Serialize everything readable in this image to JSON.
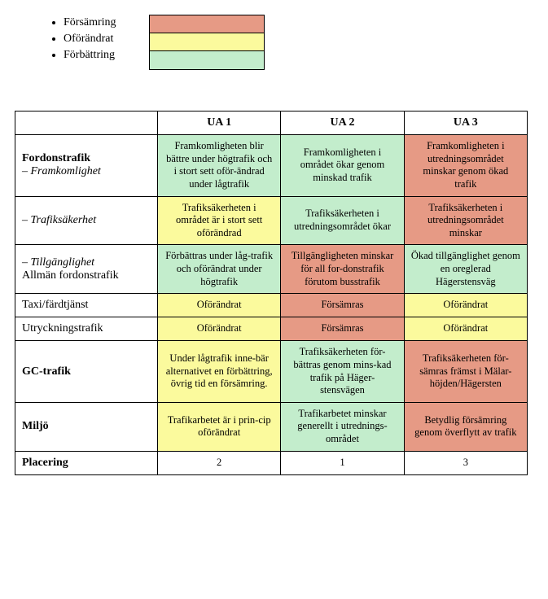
{
  "colors": {
    "worse": "#e69a85",
    "same": "#fbfa9d",
    "better": "#c3edcc",
    "border": "#000000",
    "bg": "#ffffff"
  },
  "legend": {
    "items": [
      {
        "label": "Försämring",
        "color_key": "worse"
      },
      {
        "label": "Oförändrat",
        "color_key": "same"
      },
      {
        "label": "Förbättring",
        "color_key": "better"
      }
    ]
  },
  "table": {
    "columns": [
      {
        "key": "ua1",
        "label": "UA 1"
      },
      {
        "key": "ua2",
        "label": "UA 2"
      },
      {
        "key": "ua3",
        "label": "UA 3"
      }
    ],
    "rows": [
      {
        "row_kind": "solid",
        "label_parts": [
          {
            "text": "Fordonstrafik",
            "style": "title"
          },
          {
            "text": "– Framkomlighet",
            "style": "sub"
          }
        ],
        "cells": {
          "ua1": {
            "text": "Framkomligheten blir bättre under högtrafik och i stort sett oför-ändrad under lågtrafik",
            "color_key": "better"
          },
          "ua2": {
            "text": "Framkomligheten i området ökar genom minskad trafik",
            "color_key": "better"
          },
          "ua3": {
            "text": "Framkomligheten i utredningsområdet minskar genom ökad trafik",
            "color_key": "worse"
          }
        }
      },
      {
        "row_kind": "dashed",
        "label_parts": [
          {
            "text": "– Trafiksäkerhet",
            "style": "sub"
          }
        ],
        "cells": {
          "ua1": {
            "text": "Trafiksäkerheten i området är i stort sett oförändrad",
            "color_key": "same"
          },
          "ua2": {
            "text": "Trafiksäkerheten i utredningsområdet ökar",
            "color_key": "better"
          },
          "ua3": {
            "text": "Trafiksäkerheten i utredningsområdet minskar",
            "color_key": "worse"
          }
        }
      },
      {
        "row_kind": "dashed",
        "label_parts": [
          {
            "text": "– Tillgänglighet",
            "style": "sub"
          },
          {
            "text": "Allmän fordonstrafik",
            "style": "normal"
          }
        ],
        "cells": {
          "ua1": {
            "text": "Förbättras under låg-trafik och oförändrat under högtrafik",
            "color_key": "better"
          },
          "ua2": {
            "text": "Tillgängligheten minskar för all for-donstrafik förutom busstrafik",
            "color_key": "worse"
          },
          "ua3": {
            "text": "Ökad tillgänglighet genom en oreglerad Hägerstensväg",
            "color_key": "better"
          }
        }
      },
      {
        "row_kind": "solid",
        "label_parts": [
          {
            "text": "Taxi/färdtjänst",
            "style": "normal"
          }
        ],
        "cells": {
          "ua1": {
            "text": "Oförändrat",
            "color_key": "same"
          },
          "ua2": {
            "text": "Försämras",
            "color_key": "worse"
          },
          "ua3": {
            "text": "Oförändrat",
            "color_key": "same"
          }
        }
      },
      {
        "row_kind": "solid",
        "label_parts": [
          {
            "text": "Utryckningstrafik",
            "style": "normal"
          }
        ],
        "cells": {
          "ua1": {
            "text": "Oförändrat",
            "color_key": "same"
          },
          "ua2": {
            "text": "Försämras",
            "color_key": "worse"
          },
          "ua3": {
            "text": "Oförändrat",
            "color_key": "same"
          }
        }
      },
      {
        "row_kind": "solid",
        "label_parts": [
          {
            "text": "GC-trafik",
            "style": "title"
          }
        ],
        "cells": {
          "ua1": {
            "text": "Under lågtrafik inne-bär alternativet en förbättring, övrig tid en försämring.",
            "color_key": "same"
          },
          "ua2": {
            "text": "Trafiksäkerheten för-bättras genom mins-kad trafik på Häger-stensvägen",
            "color_key": "better"
          },
          "ua3": {
            "text": "Trafiksäkerheten för-sämras främst i Mälar-höjden/Hägersten",
            "color_key": "worse"
          }
        }
      },
      {
        "row_kind": "solid",
        "label_parts": [
          {
            "text": "Miljö",
            "style": "title"
          }
        ],
        "cells": {
          "ua1": {
            "text": "Trafikarbetet är i prin-cip oförändrat",
            "color_key": "same"
          },
          "ua2": {
            "text": "Trafikarbetet minskar generellt i utrednings-området",
            "color_key": "better"
          },
          "ua3": {
            "text": "Betydlig försämring genom överflytt av trafik",
            "color_key": "worse"
          }
        }
      },
      {
        "row_kind": "solid",
        "label_parts": [
          {
            "text": "Placering",
            "style": "title"
          }
        ],
        "cells": {
          "ua1": {
            "text": "2",
            "color_key": null
          },
          "ua2": {
            "text": "1",
            "color_key": null
          },
          "ua3": {
            "text": "3",
            "color_key": null
          }
        }
      }
    ]
  }
}
